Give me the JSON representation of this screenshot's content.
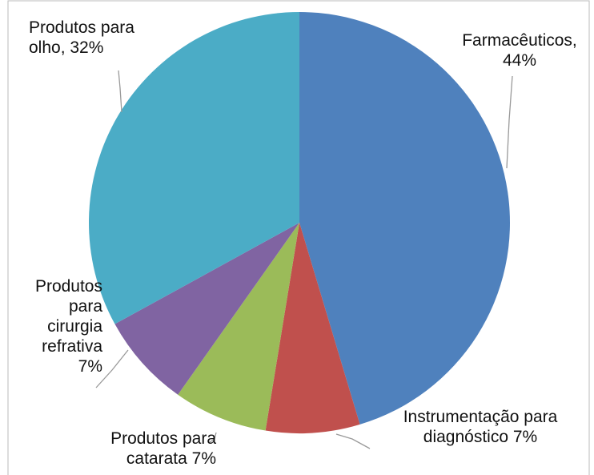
{
  "chart_data": {
    "type": "pie",
    "categories": [
      "Farmacêuticos, 44%",
      "Instrumentação para diagnóstico 7%",
      "Produtos para catarata 7%",
      "Produtos para cirurgia refrativa 7%",
      "Produtos para olho, 32%"
    ],
    "values": [
      44,
      7,
      7,
      7,
      32
    ],
    "colors": [
      "#4f81bd",
      "#c0504d",
      "#9bbb59",
      "#8064a2",
      "#4bacc6"
    ]
  }
}
